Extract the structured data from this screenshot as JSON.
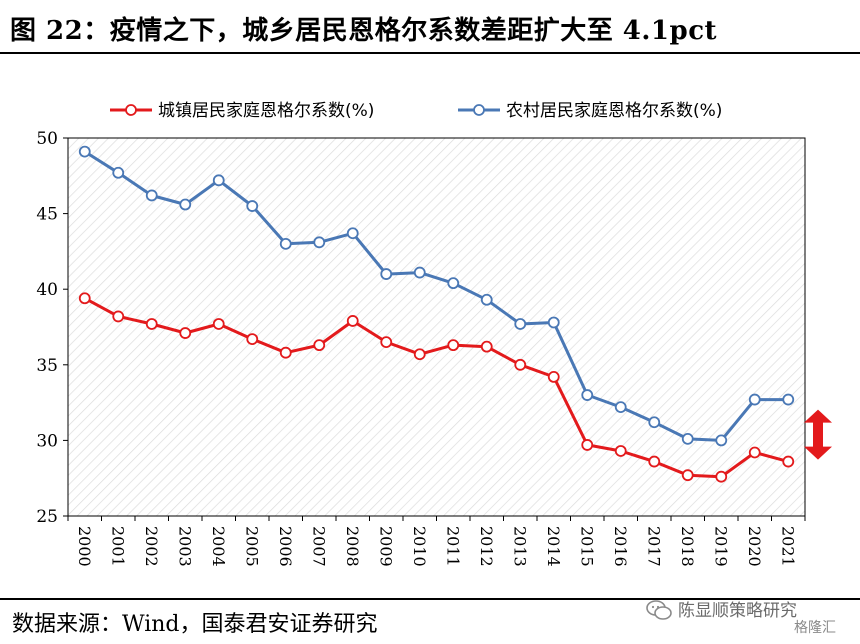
{
  "title": "图 22：疫情之下，城乡居民恩格尔系数差距扩大至 4.1pct",
  "source": "数据来源：Wind，国泰君安证券研究",
  "watermark": {
    "text": "陈显顺策略研究",
    "logo_text": "格隆汇",
    "icon": "wechat-icon"
  },
  "colors": {
    "urban": "#e31a1c",
    "rural": "#4a78b5",
    "arrow": "#e31a1c",
    "grid": "#d9d9d9"
  },
  "chart_data": {
    "type": "line",
    "x": [
      "2000",
      "2001",
      "2002",
      "2003",
      "2004",
      "2005",
      "2006",
      "2007",
      "2008",
      "2009",
      "2010",
      "2011",
      "2012",
      "2013",
      "2014",
      "2015",
      "2016",
      "2017",
      "2018",
      "2019",
      "2020",
      "2021"
    ],
    "series": [
      {
        "name": "城镇居民家庭恩格尔系数(%)",
        "values": [
          39.4,
          38.2,
          37.7,
          37.1,
          37.7,
          36.7,
          35.8,
          36.3,
          37.9,
          36.5,
          35.7,
          36.3,
          36.2,
          35.0,
          34.2,
          29.7,
          29.3,
          28.6,
          27.7,
          27.6,
          29.2,
          28.6
        ]
      },
      {
        "name": "农村居民家庭恩格尔系数(%)",
        "values": [
          49.1,
          47.7,
          46.2,
          45.6,
          47.2,
          45.5,
          43.0,
          43.1,
          43.7,
          41.0,
          41.1,
          40.4,
          39.3,
          37.7,
          37.8,
          33.0,
          32.2,
          31.2,
          30.1,
          30.0,
          32.7,
          32.7
        ]
      }
    ],
    "yticks": [
      25,
      30,
      35,
      40,
      45,
      50
    ],
    "ylim": [
      25,
      50
    ],
    "grid": false,
    "legend_position": "top",
    "annotation": "double-headed arrow marking the 2021 urban-rural gap"
  }
}
